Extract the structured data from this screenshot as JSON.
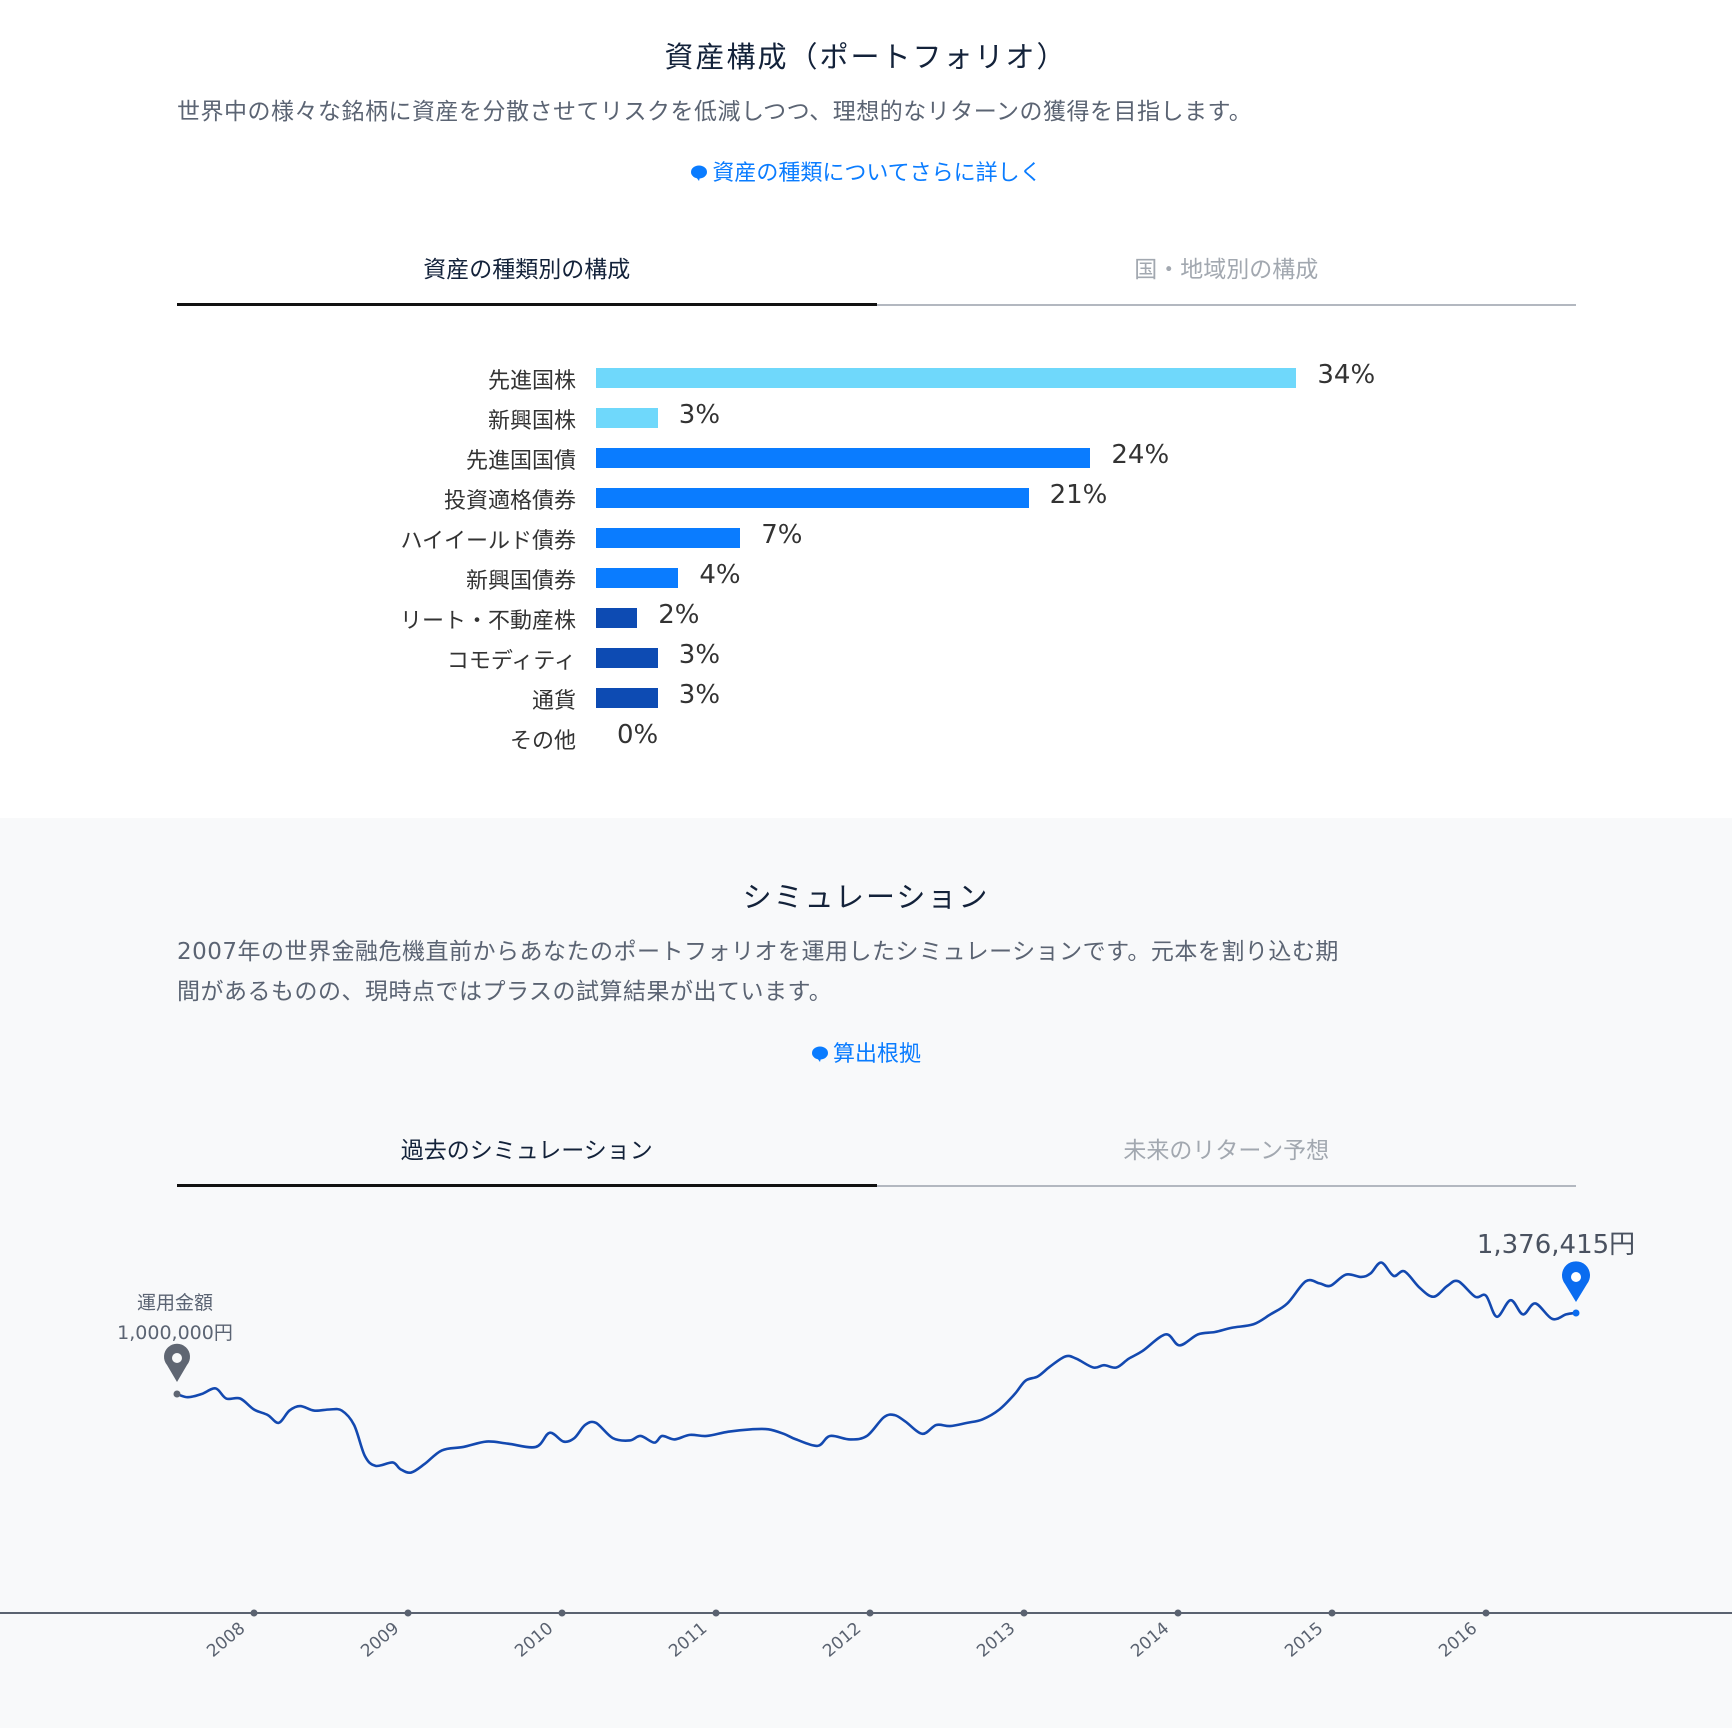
{
  "portfolio": {
    "title": "資産構成（ポートフォリオ）",
    "description": "世界中の様々な銘柄に資産を分散させてリスクを低減しつつ、理想的なリターンの獲得を目指します。",
    "link": "資産の種類についてさらに詳しく",
    "tabs": [
      {
        "label": "資産の種類別の構成",
        "active": true
      },
      {
        "label": "国・地域別の構成",
        "active": false
      }
    ]
  },
  "simulation": {
    "title": "シミュレーション",
    "description_line1": "2007年の世界金融危機直前からあなたのポートフォリオを運用したシミュレーションです。元本を割り込む期",
    "description_line2": "間があるものの、現時点ではプラスの試算結果が出ています。",
    "link": "算出根拠",
    "tabs": [
      {
        "label": "過去のシミュレーション",
        "active": true
      },
      {
        "label": "未来のリターン予想",
        "active": false
      }
    ]
  },
  "colors": {
    "accent": "#0a7cff",
    "equity": "#6fd8fb",
    "bond": "#0a7cff",
    "alt": "#0d4bb3",
    "line": "#1349b0",
    "axis": "#5a6270"
  },
  "chart_data": [
    {
      "type": "bar",
      "orientation": "horizontal",
      "categories": [
        "先進国株",
        "新興国株",
        "先進国国債",
        "投資適格債券",
        "ハイイールド債券",
        "新興国債券",
        "リート・不動産株",
        "コモディティ",
        "通貨",
        "その他"
      ],
      "values": [
        34,
        3,
        24,
        21,
        7,
        4,
        2,
        3,
        3,
        0
      ],
      "labels": [
        "34%",
        "3%",
        "24%",
        "21%",
        "7%",
        "4%",
        "2%",
        "3%",
        "3%",
        "0%"
      ],
      "colors": [
        "#6fd8fb",
        "#6fd8fb",
        "#0a7cff",
        "#0a7cff",
        "#0a7cff",
        "#0a7cff",
        "#0d4bb3",
        "#0d4bb3",
        "#0d4bb3",
        "#0d4bb3"
      ]
    },
    {
      "type": "line",
      "x_ticks": [
        "2008",
        "2009",
        "2010",
        "2011",
        "2012",
        "2013",
        "2014",
        "2015",
        "2016"
      ],
      "start_label": "運用金額",
      "start_value_label": "1,000,000円",
      "end_value_label": "1,376,415円",
      "x": [
        2007.5,
        2007.57,
        2007.66,
        2007.75,
        2007.82,
        2007.91,
        2008.0,
        2008.09,
        2008.16,
        2008.23,
        2008.3,
        2008.39,
        2008.49,
        2008.57,
        2008.65,
        2008.72,
        2008.79,
        2008.9,
        2008.95,
        2009.02,
        2009.11,
        2009.22,
        2009.36,
        2009.51,
        2009.65,
        2009.83,
        2009.92,
        2010.01,
        2010.08,
        2010.15,
        2010.22,
        2010.33,
        2010.44,
        2010.51,
        2010.6,
        2010.65,
        2010.73,
        2010.83,
        2010.94,
        2011.08,
        2011.23,
        2011.34,
        2011.44,
        2011.52,
        2011.66,
        2011.74,
        2011.87,
        2011.98,
        2012.09,
        2012.16,
        2012.23,
        2012.34,
        2012.43,
        2012.52,
        2012.63,
        2012.73,
        2012.84,
        2012.94,
        2013.01,
        2013.09,
        2013.17,
        2013.27,
        2013.34,
        2013.45,
        2013.52,
        2013.6,
        2013.68,
        2013.77,
        2013.92,
        2014.01,
        2014.13,
        2014.24,
        2014.35,
        2014.49,
        2014.6,
        2014.71,
        2014.83,
        2014.92,
        2014.99,
        2015.09,
        2015.19,
        2015.25,
        2015.32,
        2015.4,
        2015.47,
        2015.57,
        2015.66,
        2015.75,
        2015.82,
        2015.93,
        2016.0,
        2016.07,
        2016.16,
        2016.24,
        2016.32,
        2016.43,
        2016.52,
        2016.58
      ],
      "y": [
        1000000,
        985000,
        1000000,
        1026000,
        979000,
        979000,
        928000,
        902000,
        866000,
        923000,
        944000,
        923000,
        928000,
        923000,
        856000,
        712000,
        666000,
        682000,
        651000,
        635000,
        676000,
        738000,
        754000,
        779000,
        769000,
        754000,
        820000,
        779000,
        795000,
        856000,
        866000,
        795000,
        784000,
        805000,
        774000,
        805000,
        789000,
        810000,
        805000,
        825000,
        836000,
        836000,
        815000,
        789000,
        759000,
        805000,
        789000,
        805000,
        892000,
        902000,
        872000,
        815000,
        856000,
        851000,
        866000,
        882000,
        928000,
        1000000,
        1062000,
        1082000,
        1128000,
        1175000,
        1164000,
        1123000,
        1134000,
        1123000,
        1164000,
        1200000,
        1277000,
        1226000,
        1277000,
        1288000,
        1308000,
        1324000,
        1370000,
        1421000,
        1524000,
        1514000,
        1503000,
        1555000,
        1544000,
        1560000,
        1611000,
        1549000,
        1570000,
        1493000,
        1452000,
        1503000,
        1524000,
        1452000,
        1457000,
        1359000,
        1436000,
        1370000,
        1421000,
        1349000,
        1370000,
        1376415
      ]
    }
  ]
}
